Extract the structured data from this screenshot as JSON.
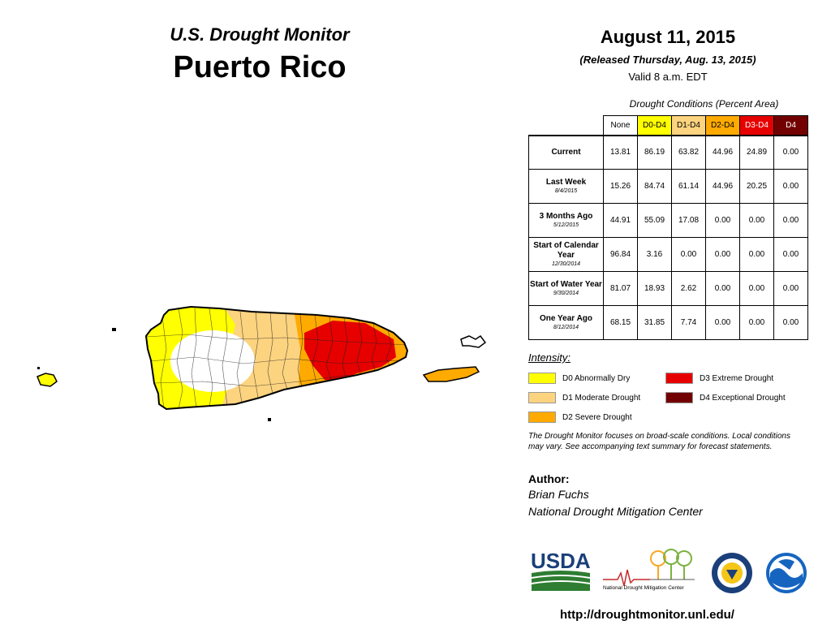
{
  "header": {
    "subtitle": "U.S. Drought Monitor",
    "title": "Puerto Rico",
    "date": "August 11, 2015",
    "released": "(Released Thursday, Aug. 13, 2015)",
    "valid": "Valid 8 a.m. EDT"
  },
  "table": {
    "caption": "Drought Conditions (Percent Area)",
    "columns": [
      {
        "label": "None",
        "color": "#ffffff"
      },
      {
        "label": "D0-D4",
        "color": "#ffff00"
      },
      {
        "label": "D1-D4",
        "color": "#fcd37f"
      },
      {
        "label": "D2-D4",
        "color": "#ffaa00"
      },
      {
        "label": "D3-D4",
        "color": "#e60000"
      },
      {
        "label": "D4",
        "color": "#730000"
      }
    ],
    "rows": [
      {
        "label": "Current",
        "date": "",
        "values": [
          "13.81",
          "86.19",
          "63.82",
          "44.96",
          "24.89",
          "0.00"
        ]
      },
      {
        "label": "Last Week",
        "date": "8/4/2015",
        "values": [
          "15.26",
          "84.74",
          "61.14",
          "44.96",
          "20.25",
          "0.00"
        ]
      },
      {
        "label": "3 Months Ago",
        "date": "5/12/2015",
        "values": [
          "44.91",
          "55.09",
          "17.08",
          "0.00",
          "0.00",
          "0.00"
        ]
      },
      {
        "label": "Start of Calendar Year",
        "date": "12/30/2014",
        "values": [
          "96.84",
          "3.16",
          "0.00",
          "0.00",
          "0.00",
          "0.00"
        ]
      },
      {
        "label": "Start of Water Year",
        "date": "9/30/2014",
        "values": [
          "81.07",
          "18.93",
          "2.62",
          "0.00",
          "0.00",
          "0.00"
        ]
      },
      {
        "label": "One Year Ago",
        "date": "8/12/2014",
        "values": [
          "68.15",
          "31.85",
          "7.74",
          "0.00",
          "0.00",
          "0.00"
        ]
      }
    ]
  },
  "legend": {
    "title": "Intensity:",
    "items": [
      {
        "label": "D0 Abnormally Dry",
        "color": "#ffff00"
      },
      {
        "label": "D1 Moderate Drought",
        "color": "#fcd37f"
      },
      {
        "label": "D2 Severe Drought",
        "color": "#ffaa00"
      },
      {
        "label": "D3 Extreme Drought",
        "color": "#e60000"
      },
      {
        "label": "D4 Exceptional Drought",
        "color": "#730000"
      }
    ]
  },
  "note": "The Drought Monitor focuses on broad-scale conditions. Local conditions may vary. See accompanying text summary for forecast statements.",
  "author": {
    "label": "Author:",
    "name": "Brian Fuchs",
    "org": "National Drought Mitigation Center"
  },
  "logos": {
    "usda": "USDA",
    "ndmc": "National Drought Mitigation Center"
  },
  "url": "http://droughtmonitor.unl.edu/"
}
